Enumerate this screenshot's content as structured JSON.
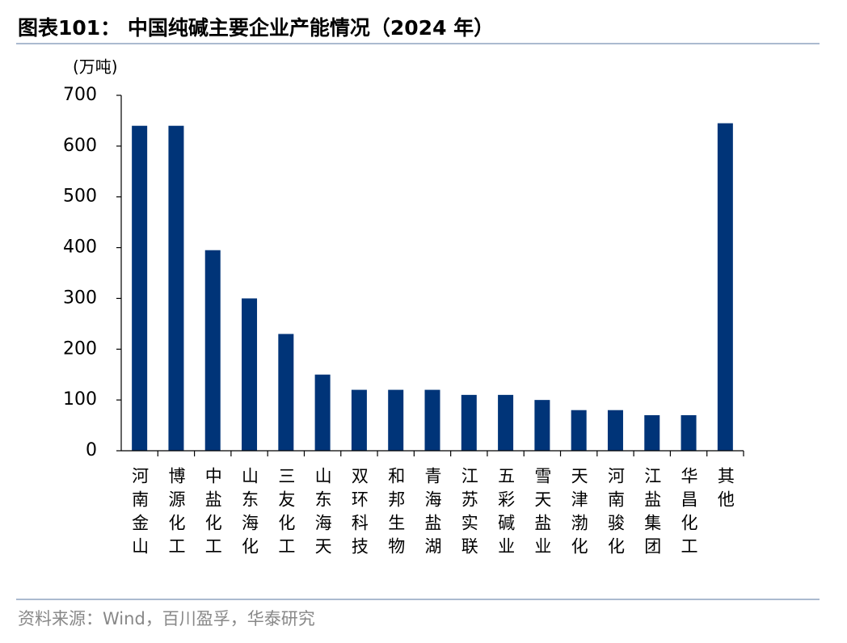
{
  "chart_data": {
    "type": "bar",
    "title": "图表101：  中国纯碱主要企业产能情况（2024 年）",
    "y_label": "(万吨)",
    "source": "资料来源：Wind，百川盈孚，华泰研究",
    "categories": [
      "河南金山",
      "博源化工",
      "中盐化工",
      "山东海化",
      "三友化工",
      "山东海天",
      "双环科技",
      "和邦生物",
      "青海盐湖",
      "江苏实联",
      "五彩碱业",
      "雪天盐业",
      "天津渤化",
      "河南骏化",
      "江盐集团",
      "华昌化工",
      "其他"
    ],
    "values": [
      640,
      640,
      395,
      300,
      230,
      150,
      120,
      120,
      120,
      110,
      110,
      100,
      80,
      80,
      70,
      70,
      645
    ],
    "color": "#003478",
    "ylim": [
      0,
      700
    ],
    "yticks": [
      0,
      100,
      200,
      300,
      400,
      500,
      600,
      700
    ],
    "grid": false
  }
}
